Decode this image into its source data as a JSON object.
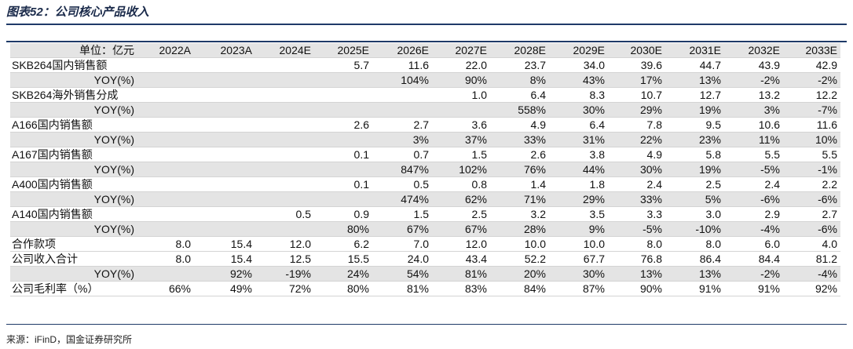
{
  "title": "图表52：公司核心产品收入",
  "header": {
    "label": "单位：亿元",
    "columns": [
      "2022A",
      "2023A",
      "2024E",
      "2025E",
      "2026E",
      "2027E",
      "2028E",
      "2029E",
      "2030E",
      "2031E",
      "2032E",
      "2033E"
    ]
  },
  "rows": [
    {
      "label": "SKB264国内销售额",
      "cells": [
        null,
        null,
        null,
        "5.7",
        "11.6",
        "22.0",
        "23.7",
        "34.0",
        "39.6",
        "44.7",
        "43.9",
        "42.9"
      ]
    },
    {
      "label": "YOY(%)",
      "shaded": true,
      "cells": [
        null,
        null,
        null,
        null,
        "104%",
        "90%",
        "8%",
        "43%",
        "17%",
        "13%",
        "-2%",
        "-2%"
      ]
    },
    {
      "label": "SKB264海外销售分成",
      "cells": [
        null,
        null,
        null,
        null,
        null,
        "1.0",
        "6.4",
        "8.3",
        "10.7",
        "12.7",
        "13.2",
        "12.2"
      ]
    },
    {
      "label": "YOY(%)",
      "shaded": true,
      "cells": [
        null,
        null,
        null,
        null,
        null,
        null,
        "558%",
        "30%",
        "29%",
        "19%",
        "3%",
        "-7%"
      ]
    },
    {
      "label": "A166国内销售额",
      "cells": [
        null,
        null,
        null,
        "2.6",
        "2.7",
        "3.6",
        "4.9",
        "6.4",
        "7.8",
        "9.5",
        "10.6",
        "11.6"
      ]
    },
    {
      "label": "YOY(%)",
      "shaded": true,
      "cells": [
        null,
        null,
        null,
        null,
        "3%",
        "37%",
        "33%",
        "31%",
        "22%",
        "23%",
        "11%",
        "10%"
      ]
    },
    {
      "label": "A167国内销售额",
      "cells": [
        null,
        null,
        null,
        "0.1",
        "0.7",
        "1.5",
        "2.6",
        "3.8",
        "4.9",
        "5.8",
        "5.5",
        "5.5"
      ]
    },
    {
      "label": "YOY(%)",
      "shaded": true,
      "cells": [
        null,
        null,
        null,
        null,
        "847%",
        "102%",
        "76%",
        "44%",
        "30%",
        "19%",
        "-5%",
        "-1%"
      ]
    },
    {
      "label": "A400国内销售额",
      "cells": [
        null,
        null,
        null,
        "0.1",
        "0.5",
        "0.8",
        "1.4",
        "1.8",
        "2.4",
        "2.5",
        "2.4",
        "2.2"
      ]
    },
    {
      "label": "YOY(%)",
      "shaded": true,
      "cells": [
        null,
        null,
        null,
        null,
        "474%",
        "62%",
        "71%",
        "29%",
        "33%",
        "5%",
        "-6%",
        "-6%"
      ]
    },
    {
      "label": "A140国内销售额",
      "cells": [
        null,
        null,
        "0.5",
        "0.9",
        "1.5",
        "2.5",
        "3.2",
        "3.5",
        "3.3",
        "3.0",
        "2.9",
        "2.7"
      ]
    },
    {
      "label": "YOY(%)",
      "shaded": true,
      "cells": [
        null,
        null,
        null,
        "80%",
        "67%",
        "67%",
        "28%",
        "9%",
        "-5%",
        "-10%",
        "-4%",
        "-6%"
      ]
    },
    {
      "label": "合作款项",
      "cells": [
        "8.0",
        "15.4",
        "12.0",
        "6.2",
        "7.0",
        "12.0",
        "10.0",
        "10.0",
        "8.0",
        "8.0",
        "6.0",
        "4.0"
      ]
    },
    {
      "label": "公司收入合计",
      "cells": [
        "8.0",
        "15.4",
        "12.5",
        "15.5",
        "24.0",
        "43.4",
        "52.2",
        "67.7",
        "76.8",
        "86.4",
        "84.4",
        "81.2"
      ]
    },
    {
      "label": "YOY(%)",
      "shaded": true,
      "cells": [
        null,
        "92%",
        "-19%",
        "24%",
        "54%",
        "81%",
        "20%",
        "30%",
        "13%",
        "13%",
        "-2%",
        "-4%"
      ]
    },
    {
      "label": "公司毛利率（%）",
      "cells": [
        "66%",
        "49%",
        "72%",
        "80%",
        "81%",
        "83%",
        "84%",
        "87%",
        "90%",
        "91%",
        "91%",
        "92%"
      ]
    }
  ],
  "source": "来源：iFinD，国金证券研究所"
}
